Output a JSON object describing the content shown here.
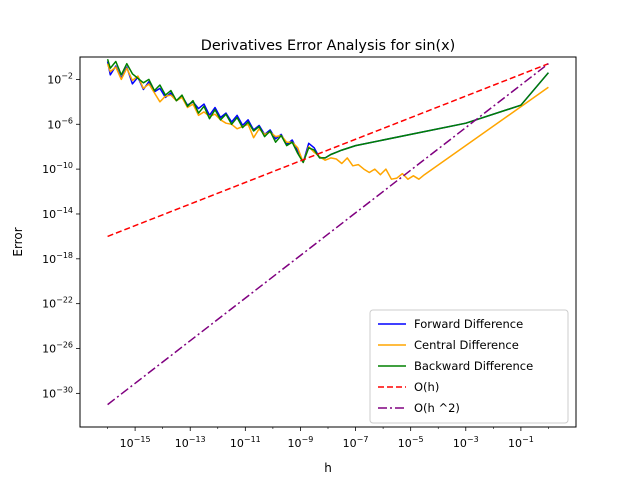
{
  "chart_data": {
    "type": "line",
    "title": "Derivatives Error Analysis for sin(x)",
    "xlabel": "h",
    "ylabel": "Error",
    "xscale": "log",
    "yscale": "log",
    "xlim": [
      1e-17,
      10
    ],
    "ylim": [
      1e-33,
      1
    ],
    "xticks": [
      {
        "value": -15,
        "base": "10",
        "exp": "−15"
      },
      {
        "value": -13,
        "base": "10",
        "exp": "−13"
      },
      {
        "value": -11,
        "base": "10",
        "exp": "−11"
      },
      {
        "value": -9,
        "base": "10",
        "exp": "−9"
      },
      {
        "value": -7,
        "base": "10",
        "exp": "−7"
      },
      {
        "value": -5,
        "base": "10",
        "exp": "−5"
      },
      {
        "value": -3,
        "base": "10",
        "exp": "−3"
      },
      {
        "value": -1,
        "base": "10",
        "exp": "−1"
      }
    ],
    "yticks": [
      {
        "value": -2,
        "base": "10",
        "exp": "−2"
      },
      {
        "value": -6,
        "base": "10",
        "exp": "−6"
      },
      {
        "value": -10,
        "base": "10",
        "exp": "−10"
      },
      {
        "value": -14,
        "base": "10",
        "exp": "−14"
      },
      {
        "value": -18,
        "base": "10",
        "exp": "−18"
      },
      {
        "value": -22,
        "base": "10",
        "exp": "−22"
      },
      {
        "value": -26,
        "base": "10",
        "exp": "−26"
      },
      {
        "value": -30,
        "base": "10",
        "exp": "−30"
      }
    ],
    "legend_position": "lower right",
    "series": [
      {
        "name": "Forward Difference",
        "color": "#0000ff",
        "style": "solid",
        "points": [
          [
            -16,
            -0.4
          ],
          [
            -15.9,
            -1.6
          ],
          [
            -15.7,
            -0.8
          ],
          [
            -15.5,
            -1.9
          ],
          [
            -15.3,
            -0.9
          ],
          [
            -15.1,
            -2.4
          ],
          [
            -14.9,
            -1.8
          ],
          [
            -14.7,
            -2.9
          ],
          [
            -14.5,
            -2.2
          ],
          [
            -14.3,
            -3.1
          ],
          [
            -14.1,
            -2.8
          ],
          [
            -13.9,
            -3.6
          ],
          [
            -13.7,
            -3.2
          ],
          [
            -13.5,
            -3.9
          ],
          [
            -13.3,
            -3.5
          ],
          [
            -13.1,
            -4.3
          ],
          [
            -12.9,
            -4.0
          ],
          [
            -12.7,
            -4.6
          ],
          [
            -12.5,
            -4.2
          ],
          [
            -12.3,
            -5.2
          ],
          [
            -12.1,
            -4.5
          ],
          [
            -11.9,
            -5.4
          ],
          [
            -11.7,
            -5.0
          ],
          [
            -11.5,
            -5.8
          ],
          [
            -11.3,
            -5.2
          ],
          [
            -11.1,
            -6.1
          ],
          [
            -10.9,
            -5.6
          ],
          [
            -10.7,
            -6.5
          ],
          [
            -10.5,
            -6.1
          ],
          [
            -10.3,
            -6.9
          ],
          [
            -10.1,
            -6.5
          ],
          [
            -9.9,
            -7.3
          ],
          [
            -9.7,
            -6.9
          ],
          [
            -9.5,
            -7.8
          ],
          [
            -9.3,
            -7.4
          ],
          [
            -9.1,
            -8.4
          ],
          [
            -8.9,
            -9.4
          ],
          [
            -8.7,
            -7.7
          ],
          [
            -8.5,
            -8.1
          ],
          [
            -8.3,
            -9.0
          ],
          [
            -8.1,
            -9.0
          ],
          [
            -7.9,
            -8.7
          ],
          [
            -7.7,
            -8.5
          ],
          [
            -7.5,
            -8.3
          ],
          [
            -7.0,
            -7.9
          ],
          [
            -5.0,
            -6.9
          ],
          [
            -3.0,
            -5.9
          ],
          [
            -1.0,
            -4.3
          ],
          [
            0.0,
            -1.4
          ]
        ]
      },
      {
        "name": "Central Difference",
        "color": "#ffa500",
        "style": "solid",
        "points": [
          [
            -16,
            -0.6
          ],
          [
            -15.9,
            -1.3
          ],
          [
            -15.7,
            -0.9
          ],
          [
            -15.5,
            -2.0
          ],
          [
            -15.3,
            -1.0
          ],
          [
            -15.1,
            -2.1
          ],
          [
            -14.9,
            -1.7
          ],
          [
            -14.7,
            -2.8
          ],
          [
            -14.5,
            -2.4
          ],
          [
            -14.3,
            -3.2
          ],
          [
            -14.1,
            -4.0
          ],
          [
            -13.9,
            -3.5
          ],
          [
            -13.7,
            -3.4
          ],
          [
            -13.5,
            -3.9
          ],
          [
            -13.3,
            -3.6
          ],
          [
            -13.1,
            -4.5
          ],
          [
            -12.9,
            -4.2
          ],
          [
            -12.7,
            -5.2
          ],
          [
            -12.5,
            -4.9
          ],
          [
            -12.3,
            -5.3
          ],
          [
            -12.1,
            -5.1
          ],
          [
            -11.9,
            -5.6
          ],
          [
            -11.7,
            -5.9
          ],
          [
            -11.5,
            -6.0
          ],
          [
            -11.3,
            -6.4
          ],
          [
            -11.1,
            -6.2
          ],
          [
            -10.9,
            -6.0
          ],
          [
            -10.7,
            -7.2
          ],
          [
            -10.5,
            -6.4
          ],
          [
            -10.3,
            -6.9
          ],
          [
            -10.1,
            -6.7
          ],
          [
            -9.9,
            -7.1
          ],
          [
            -9.7,
            -7.0
          ],
          [
            -9.5,
            -7.6
          ],
          [
            -9.3,
            -7.6
          ],
          [
            -9.1,
            -8.1
          ],
          [
            -8.9,
            -9.4
          ],
          [
            -8.7,
            -8.0
          ],
          [
            -8.5,
            -8.5
          ],
          [
            -8.3,
            -8.9
          ],
          [
            -8.1,
            -9.2
          ],
          [
            -7.9,
            -9.0
          ],
          [
            -7.7,
            -9.1
          ],
          [
            -7.5,
            -9.5
          ],
          [
            -7.3,
            -9.0
          ],
          [
            -7.1,
            -9.7
          ],
          [
            -6.9,
            -9.6
          ],
          [
            -6.7,
            -10.0
          ],
          [
            -6.5,
            -10.3
          ],
          [
            -6.3,
            -10.0
          ],
          [
            -6.1,
            -10.5
          ],
          [
            -5.9,
            -10.0
          ],
          [
            -5.7,
            -10.9
          ],
          [
            -5.5,
            -10.8
          ],
          [
            -5.3,
            -10.4
          ],
          [
            -5.1,
            -10.9
          ],
          [
            -4.9,
            -10.6
          ],
          [
            -4.7,
            -10.9
          ],
          [
            -4.5,
            -10.5
          ],
          [
            -0.0,
            -2.7
          ]
        ]
      },
      {
        "name": "Backward Difference",
        "color": "#008000",
        "style": "solid",
        "points": [
          [
            -16,
            -0.2
          ],
          [
            -15.9,
            -1.0
          ],
          [
            -15.7,
            -0.4
          ],
          [
            -15.5,
            -1.6
          ],
          [
            -15.3,
            -0.6
          ],
          [
            -15.1,
            -1.5
          ],
          [
            -14.9,
            -1.9
          ],
          [
            -14.7,
            -2.3
          ],
          [
            -14.5,
            -2.0
          ],
          [
            -14.3,
            -3.0
          ],
          [
            -14.1,
            -2.5
          ],
          [
            -13.9,
            -3.4
          ],
          [
            -13.7,
            -3.0
          ],
          [
            -13.5,
            -3.9
          ],
          [
            -13.3,
            -3.4
          ],
          [
            -13.1,
            -4.4
          ],
          [
            -12.9,
            -3.9
          ],
          [
            -12.7,
            -5.0
          ],
          [
            -12.5,
            -4.4
          ],
          [
            -12.3,
            -5.5
          ],
          [
            -12.1,
            -4.7
          ],
          [
            -11.9,
            -5.6
          ],
          [
            -11.7,
            -5.1
          ],
          [
            -11.5,
            -6.0
          ],
          [
            -11.3,
            -5.4
          ],
          [
            -11.1,
            -6.3
          ],
          [
            -10.9,
            -5.8
          ],
          [
            -10.7,
            -6.6
          ],
          [
            -10.5,
            -6.2
          ],
          [
            -10.3,
            -7.1
          ],
          [
            -10.1,
            -6.6
          ],
          [
            -9.9,
            -7.6
          ],
          [
            -9.7,
            -7.0
          ],
          [
            -9.5,
            -7.9
          ],
          [
            -9.3,
            -7.6
          ],
          [
            -9.1,
            -8.6
          ],
          [
            -8.9,
            -9.4
          ],
          [
            -8.7,
            -8.1
          ],
          [
            -8.5,
            -8.3
          ],
          [
            -8.3,
            -9.0
          ],
          [
            -8.1,
            -9.0
          ],
          [
            -7.9,
            -8.7
          ],
          [
            -7.7,
            -8.5
          ],
          [
            -7.5,
            -8.3
          ],
          [
            -7.0,
            -7.9
          ],
          [
            -5.0,
            -6.9
          ],
          [
            -3.0,
            -5.9
          ],
          [
            -1.0,
            -4.3
          ],
          [
            0.0,
            -1.4
          ]
        ]
      },
      {
        "name": "O(h)",
        "color": "#ff0000",
        "style": "dashed",
        "points": [
          [
            -16,
            -16.0
          ],
          [
            0,
            -0.6
          ]
        ]
      },
      {
        "name": "O(h ^2)",
        "color": "#800080",
        "style": "dashdot",
        "points": [
          [
            -16,
            -31.0
          ],
          [
            0,
            -0.6
          ]
        ]
      }
    ]
  }
}
